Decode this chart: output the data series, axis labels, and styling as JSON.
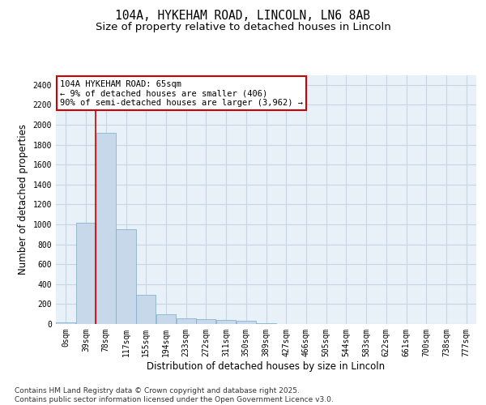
{
  "title_line1": "104A, HYKEHAM ROAD, LINCOLN, LN6 8AB",
  "title_line2": "Size of property relative to detached houses in Lincoln",
  "xlabel": "Distribution of detached houses by size in Lincoln",
  "ylabel": "Number of detached properties",
  "bar_color": "#c8d8eb",
  "bar_edge_color": "#7aaac8",
  "grid_color": "#c5d5e5",
  "background_color": "#e8f0f8",
  "vline_color": "#cc0000",
  "annotation_text": "104A HYKEHAM ROAD: 65sqm\n← 9% of detached houses are smaller (406)\n90% of semi-detached houses are larger (3,962) →",
  "annotation_box_color": "#ffffff",
  "annotation_box_edge": "#cc0000",
  "categories": [
    "0sqm",
    "39sqm",
    "78sqm",
    "117sqm",
    "155sqm",
    "194sqm",
    "233sqm",
    "272sqm",
    "311sqm",
    "350sqm",
    "389sqm",
    "427sqm",
    "466sqm",
    "505sqm",
    "544sqm",
    "583sqm",
    "622sqm",
    "661sqm",
    "700sqm",
    "738sqm",
    "777sqm"
  ],
  "values": [
    20,
    1020,
    1920,
    950,
    290,
    100,
    60,
    50,
    40,
    30,
    10,
    0,
    0,
    0,
    0,
    0,
    0,
    0,
    0,
    0,
    0
  ],
  "ylim": [
    0,
    2500
  ],
  "yticks": [
    0,
    200,
    400,
    600,
    800,
    1000,
    1200,
    1400,
    1600,
    1800,
    2000,
    2200,
    2400
  ],
  "footnote": "Contains HM Land Registry data © Crown copyright and database right 2025.\nContains public sector information licensed under the Open Government Licence v3.0.",
  "title_fontsize": 10.5,
  "subtitle_fontsize": 9.5,
  "tick_fontsize": 7,
  "label_fontsize": 8.5,
  "footnote_fontsize": 6.5,
  "annotation_fontsize": 7.5
}
